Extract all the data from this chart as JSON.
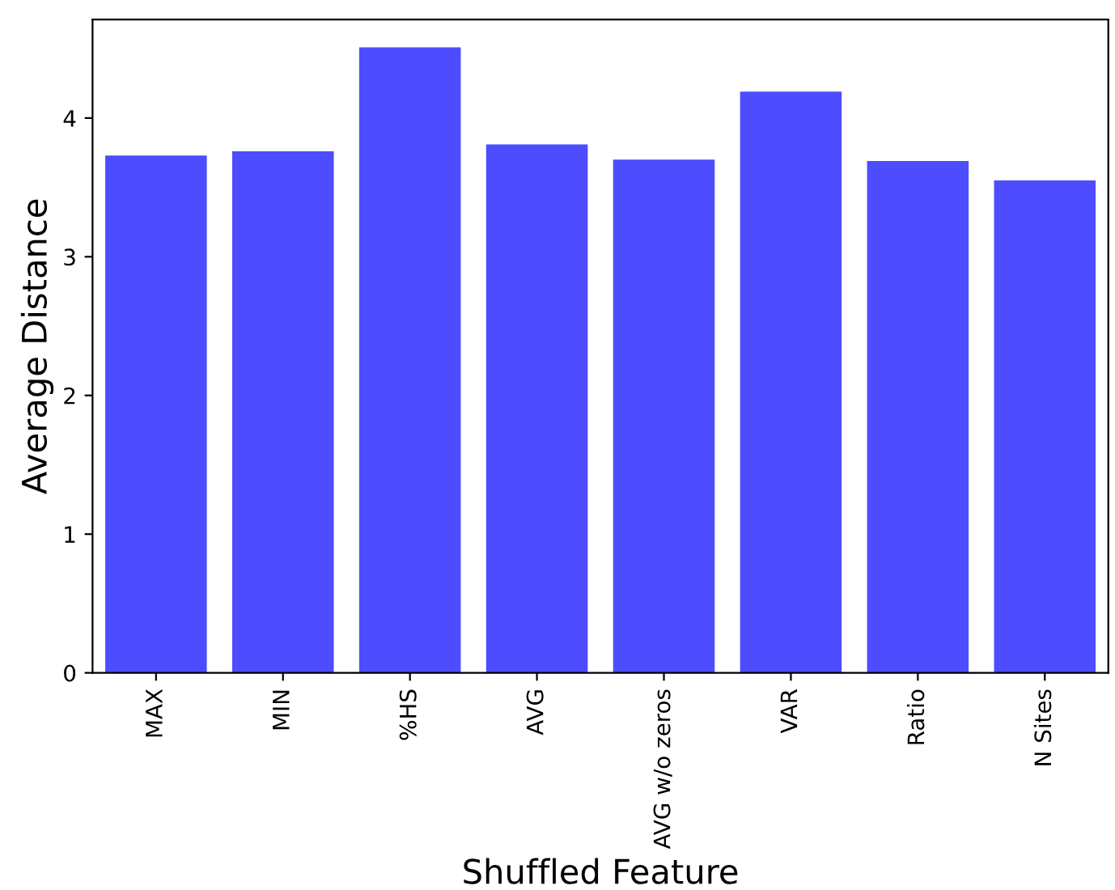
{
  "chart_data": {
    "type": "bar",
    "xlabel": "Shuffled Feature",
    "ylabel": "Average Distance",
    "categories": [
      "MAX",
      "MIN",
      "%HS",
      "AVG",
      "AVG w/o zeros",
      "VAR",
      "Ratio",
      "N Sites"
    ],
    "values": [
      3.73,
      3.76,
      4.51,
      3.81,
      3.7,
      4.19,
      3.69,
      3.55
    ],
    "color": "#4d4dff",
    "ylim": [
      0,
      4.71
    ],
    "yticks": [
      0,
      1,
      2,
      3,
      4
    ],
    "grid": false,
    "legend": false
  }
}
